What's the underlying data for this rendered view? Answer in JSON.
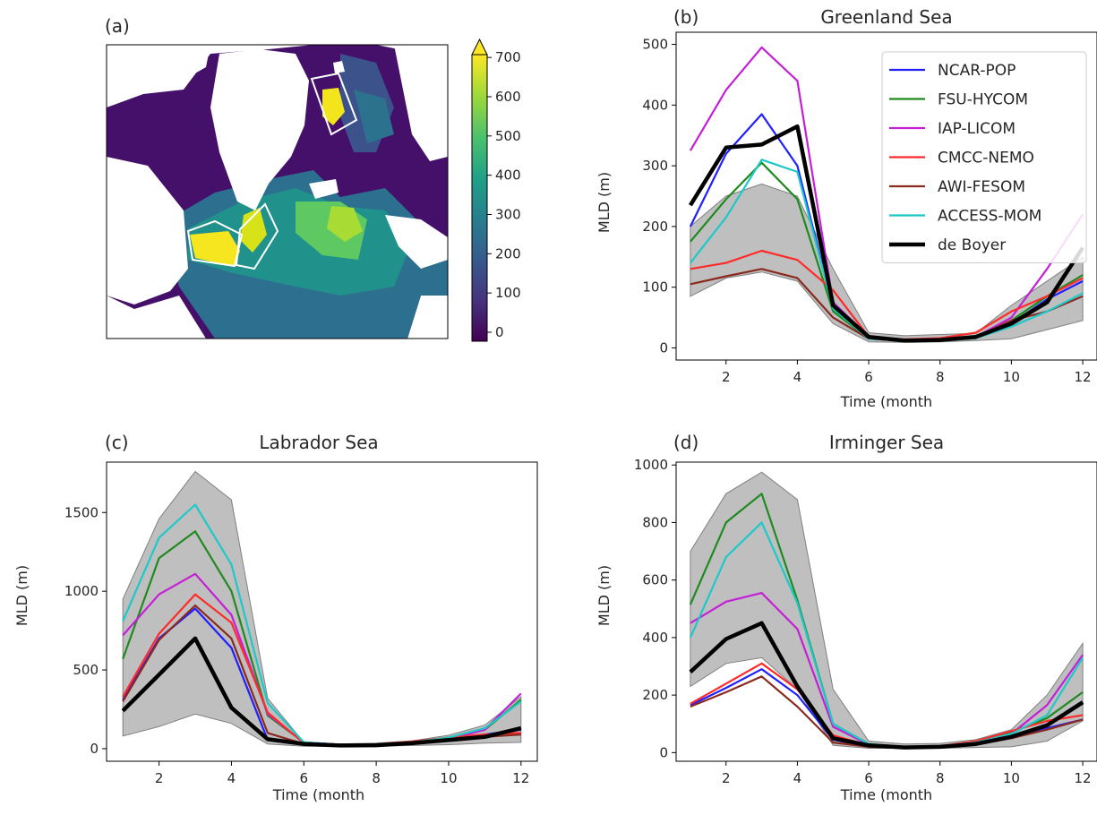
{
  "figure": {
    "colors": {
      "NCAR-POP": "#1f1fff",
      "FSU-HYCOM": "#1f8a1f",
      "IAP-LICOM": "#c41fd6",
      "CMCC-NEMO": "#ff2a2a",
      "AWI-FESOM": "#8a2a1f",
      "ACCESS-MOM": "#1fc8c8",
      "de Boyer": "#000000",
      "spread": "#bfbfbf"
    },
    "legend": {
      "placement": "top-right",
      "entries": [
        "NCAR-POP",
        "FSU-HYCOM",
        "IAP-LICOM",
        "CMCC-NEMO",
        "AWI-FESOM",
        "ACCESS-MOM",
        "de Boyer"
      ]
    }
  },
  "panel_a": {
    "label": "(a)",
    "colorbar": {
      "ticks": [
        "0",
        "100",
        "200",
        "300",
        "400",
        "500",
        "600",
        "700"
      ],
      "colormap": "viridis",
      "extend": "max"
    }
  },
  "chart_data": [
    {
      "id": "b",
      "label": "(b)",
      "type": "line",
      "title": "Greenland Sea",
      "xlabel": "Time (month",
      "ylabel": "MLD (m)",
      "xlim": [
        0.6,
        12.4
      ],
      "ylim": [
        -20,
        520
      ],
      "xticks": [
        2,
        4,
        6,
        8,
        10,
        12
      ],
      "yticks": [
        0,
        100,
        200,
        300,
        400,
        500
      ],
      "legend": "top-right",
      "x": [
        1,
        2,
        3,
        4,
        5,
        6,
        7,
        8,
        9,
        10,
        11,
        12
      ],
      "spread": {
        "upper": [
          200,
          250,
          270,
          250,
          130,
          25,
          20,
          22,
          24,
          70,
          110,
          150
        ],
        "lower": [
          85,
          115,
          125,
          110,
          40,
          10,
          9,
          10,
          12,
          15,
          30,
          45
        ]
      },
      "series": [
        {
          "name": "NCAR-POP",
          "values": [
            200,
            320,
            385,
            300,
            65,
            15,
            12,
            13,
            16,
            40,
            80,
            110
          ]
        },
        {
          "name": "FSU-HYCOM",
          "values": [
            175,
            245,
            305,
            245,
            60,
            15,
            12,
            13,
            16,
            45,
            85,
            120
          ]
        },
        {
          "name": "IAP-LICOM",
          "values": [
            325,
            425,
            495,
            440,
            75,
            18,
            12,
            13,
            18,
            50,
            130,
            220
          ]
        },
        {
          "name": "CMCC-NEMO",
          "values": [
            130,
            140,
            160,
            145,
            95,
            18,
            14,
            16,
            25,
            60,
            85,
            115
          ]
        },
        {
          "name": "AWI-FESOM",
          "values": [
            105,
            118,
            130,
            115,
            50,
            15,
            12,
            13,
            18,
            45,
            60,
            85
          ]
        },
        {
          "name": "ACCESS-MOM",
          "values": [
            140,
            215,
            310,
            290,
            65,
            15,
            12,
            13,
            16,
            35,
            60,
            90
          ]
        },
        {
          "name": "de Boyer",
          "values": [
            235,
            330,
            335,
            365,
            70,
            18,
            12,
            13,
            18,
            40,
            75,
            165
          ]
        }
      ]
    },
    {
      "id": "c",
      "label": "(c)",
      "type": "line",
      "title": "Labrador Sea",
      "xlabel": "Time (month",
      "ylabel": "MLD (m)",
      "xlim": [
        0.55,
        12.45
      ],
      "ylim": [
        -80,
        1820
      ],
      "xticks": [
        2,
        4,
        6,
        8,
        10,
        12
      ],
      "yticks": [
        0,
        500,
        1000,
        1500
      ],
      "x": [
        1,
        2,
        3,
        4,
        5,
        6,
        7,
        8,
        9,
        10,
        11,
        12
      ],
      "spread": {
        "upper": [
          950,
          1460,
          1760,
          1580,
          320,
          40,
          30,
          35,
          50,
          85,
          150,
          330
        ],
        "lower": [
          80,
          140,
          220,
          160,
          30,
          15,
          15,
          15,
          20,
          25,
          35,
          40
        ]
      },
      "series": [
        {
          "name": "NCAR-POP",
          "values": [
            310,
            700,
            890,
            640,
            55,
            30,
            22,
            25,
            35,
            60,
            90,
            120
          ]
        },
        {
          "name": "FSU-HYCOM",
          "values": [
            570,
            1210,
            1380,
            1000,
            210,
            40,
            25,
            28,
            40,
            70,
            120,
            310
          ]
        },
        {
          "name": "IAP-LICOM",
          "values": [
            720,
            980,
            1110,
            850,
            220,
            40,
            25,
            28,
            40,
            60,
            120,
            350
          ]
        },
        {
          "name": "CMCC-NEMO",
          "values": [
            330,
            730,
            980,
            800,
            230,
            35,
            25,
            28,
            45,
            70,
            90,
            100
          ]
        },
        {
          "name": "AWI-FESOM",
          "values": [
            300,
            690,
            910,
            700,
            100,
            30,
            22,
            25,
            35,
            55,
            75,
            90
          ]
        },
        {
          "name": "ACCESS-MOM",
          "values": [
            810,
            1340,
            1550,
            1170,
            290,
            40,
            25,
            28,
            40,
            70,
            130,
            300
          ]
        },
        {
          "name": "de Boyer",
          "values": [
            240,
            470,
            700,
            260,
            60,
            30,
            20,
            22,
            35,
            55,
            75,
            130
          ]
        }
      ]
    },
    {
      "id": "d",
      "label": "(d)",
      "type": "line",
      "title": "Irminger Sea",
      "xlabel": "Time (month",
      "ylabel": "MLD (m)",
      "xlim": [
        0.6,
        12.4
      ],
      "ylim": [
        -30,
        1010
      ],
      "xticks": [
        2,
        4,
        6,
        8,
        10,
        12
      ],
      "yticks": [
        0,
        200,
        400,
        600,
        800,
        1000
      ],
      "x": [
        1,
        2,
        3,
        4,
        5,
        6,
        7,
        8,
        9,
        10,
        11,
        12
      ],
      "spread": {
        "upper": [
          700,
          900,
          975,
          880,
          220,
          40,
          30,
          32,
          45,
          80,
          200,
          380
        ],
        "lower": [
          230,
          310,
          330,
          220,
          25,
          15,
          15,
          15,
          18,
          20,
          40,
          110
        ]
      },
      "series": [
        {
          "name": "NCAR-POP",
          "values": [
            165,
            225,
            290,
            200,
            45,
            22,
            18,
            20,
            30,
            55,
            85,
            115
          ]
        },
        {
          "name": "FSU-HYCOM",
          "values": [
            515,
            800,
            900,
            530,
            100,
            30,
            20,
            22,
            35,
            70,
            120,
            210
          ]
        },
        {
          "name": "IAP-LICOM",
          "values": [
            450,
            525,
            555,
            430,
            90,
            28,
            20,
            22,
            35,
            65,
            165,
            340
          ]
        },
        {
          "name": "CMCC-NEMO",
          "values": [
            170,
            240,
            310,
            220,
            60,
            25,
            20,
            22,
            40,
            75,
            110,
            130
          ]
        },
        {
          "name": "AWI-FESOM",
          "values": [
            160,
            210,
            265,
            160,
            35,
            20,
            16,
            18,
            28,
            50,
            80,
            115
          ]
        },
        {
          "name": "ACCESS-MOM",
          "values": [
            400,
            680,
            800,
            520,
            100,
            30,
            20,
            22,
            35,
            65,
            130,
            330
          ]
        },
        {
          "name": "de Boyer",
          "values": [
            280,
            395,
            450,
            230,
            50,
            25,
            18,
            20,
            30,
            55,
            95,
            175
          ]
        }
      ]
    }
  ]
}
